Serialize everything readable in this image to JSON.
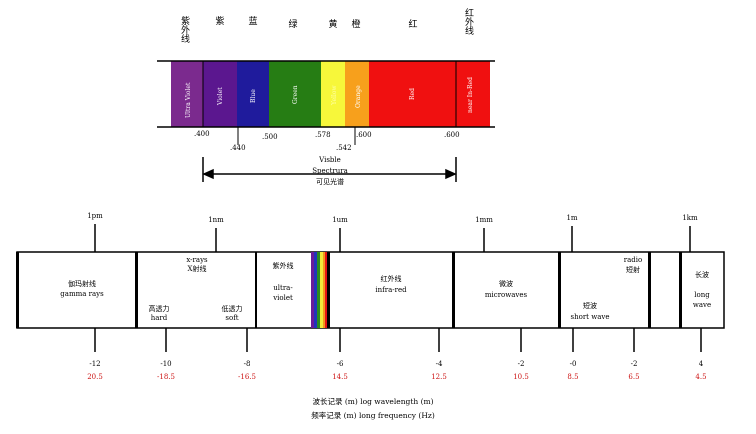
{
  "top_labels": [
    "紫外线",
    "紫",
    "蓝",
    "绿",
    "黄",
    "橙",
    "红",
    "红外线"
  ],
  "bands": [
    {
      "label": "Ultra Violet",
      "color": "#7b2a8e"
    },
    {
      "label": "Violet",
      "color": "#5b178f"
    },
    {
      "label": "Blue",
      "color": "#1f1b9c"
    },
    {
      "label": "Green",
      "color": "#267d14"
    },
    {
      "label": "Yellow",
      "color": "#f7f73a"
    },
    {
      "label": "Orange",
      "color": "#f7a01c"
    },
    {
      "label": "Red",
      "color": "#f01010"
    },
    {
      "label": "near In-Red",
      "color": "#f01010"
    }
  ],
  "wavelength_ticks": [
    ".400",
    ".440",
    ".500",
    ".578",
    ".542",
    ".600",
    ".600"
  ],
  "visible_label": {
    "line1": "Visble",
    "line2": "Spectrura",
    "line3": "可见光谱"
  },
  "scale_markers": [
    "1pm",
    "1nm",
    "1um",
    "1mm",
    "1m",
    "1km"
  ],
  "regions": {
    "gamma": {
      "cn": "伽玛射线",
      "en": "gamma rays"
    },
    "xray": {
      "en": "x-rays",
      "cn": "X射线",
      "hard_cn": "高透力",
      "hard_en": "hard",
      "soft_cn": "低透力",
      "soft_en": "soft"
    },
    "uv": {
      "cn": "紫外线",
      "en1": "ultra-",
      "en2": "violet"
    },
    "ir": {
      "cn": "红外线",
      "en": "infra-red"
    },
    "micro": {
      "cn": "微波",
      "en": "microwaves"
    },
    "radio": {
      "en": "radio",
      "cn": "短射",
      "sw_cn": "短波",
      "sw_en": "short wave"
    },
    "long": {
      "cn": "长波",
      "en1": "long",
      "en2": "wave"
    }
  },
  "log_wavelength": [
    "-12",
    "-10",
    "-8",
    "-6",
    "-4",
    "-2",
    "-0",
    "-2",
    "4"
  ],
  "log_frequency": [
    "20.5",
    "-18.5",
    "-16.5",
    "14.5",
    "12.5",
    "10.5",
    "8.5",
    "6.5",
    "4.5"
  ],
  "captions": {
    "wavelength": "波长记录 (m) log wavelength (m)",
    "frequency": "频率记录 (m) long frequency (Hz)"
  },
  "colors": {
    "frequency_text": "#cc1111"
  }
}
